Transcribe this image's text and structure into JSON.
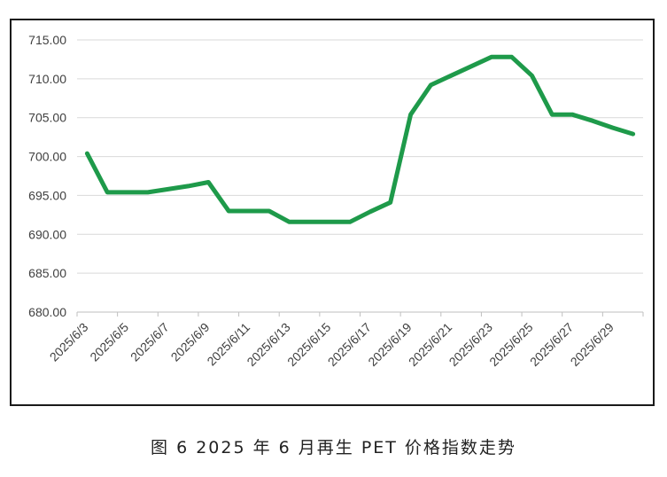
{
  "caption": "图 6  2025 年 6 月再生 PET 价格指数走势",
  "chart_data": {
    "type": "line",
    "title": "",
    "xlabel": "",
    "ylabel": "",
    "ylim": [
      680,
      715
    ],
    "ytick_step": 5,
    "grid": true,
    "legend": "none",
    "x": [
      "2025/6/3",
      "2025/6/4",
      "2025/6/5",
      "2025/6/6",
      "2025/6/7",
      "2025/6/8",
      "2025/6/9",
      "2025/6/10",
      "2025/6/11",
      "2025/6/12",
      "2025/6/13",
      "2025/6/14",
      "2025/6/15",
      "2025/6/16",
      "2025/6/17",
      "2025/6/18",
      "2025/6/19",
      "2025/6/20",
      "2025/6/21",
      "2025/6/22",
      "2025/6/23",
      "2025/6/24",
      "2025/6/25",
      "2025/6/26",
      "2025/6/27",
      "2025/6/28",
      "2025/6/29",
      "2025/6/30"
    ],
    "x_tick_labels": [
      "2025/6/3",
      "2025/6/5",
      "2025/6/7",
      "2025/6/9",
      "2025/6/11",
      "2025/6/13",
      "2025/6/15",
      "2025/6/17",
      "2025/6/19",
      "2025/6/21",
      "2025/6/23",
      "2025/6/25",
      "2025/6/27",
      "2025/6/29"
    ],
    "series": [
      {
        "values": [
          700.4,
          695.4,
          695.4,
          695.4,
          695.8,
          696.2,
          696.7,
          693.0,
          693.0,
          693.0,
          691.6,
          691.6,
          691.6,
          691.6,
          692.9,
          694.1,
          705.4,
          709.2,
          710.4,
          711.6,
          712.8,
          712.8,
          710.4,
          705.4,
          705.4,
          704.6,
          703.7,
          702.9
        ],
        "color": "#1e9a4a"
      }
    ],
    "colors": {
      "line": "#1e9a4a",
      "grid": "#d9d9d9",
      "axis": "#bfbfbf"
    }
  }
}
